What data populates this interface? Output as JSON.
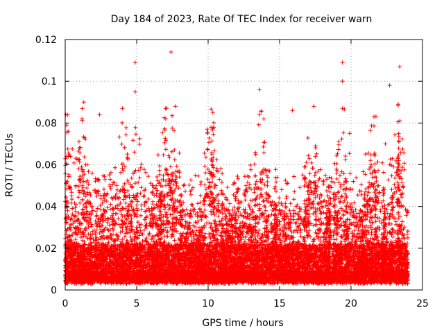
{
  "chart_data": {
    "type": "scatter",
    "title": "Day 184 of 2023, Rate Of TEC Index for receiver warn",
    "xlabel": "GPS time / hours",
    "ylabel": "ROTI / TECUs",
    "xlim": [
      0,
      25
    ],
    "ylim": [
      0,
      0.12
    ],
    "xticks": [
      0,
      5,
      10,
      15,
      20,
      25
    ],
    "yticks": [
      0,
      0.02,
      0.04,
      0.06,
      0.08,
      0.1,
      0.12
    ],
    "xtick_labels": [
      "0",
      "5",
      "10",
      "15",
      "20",
      "25"
    ],
    "ytick_labels": [
      "0",
      "0.02",
      "0.04",
      "0.06",
      "0.08",
      "0.1",
      "0.12"
    ],
    "grid": true,
    "marker": "+",
    "color": "#ff0000",
    "outliers": [
      {
        "x": 7.4,
        "y": 0.114
      },
      {
        "x": 4.9,
        "y": 0.109
      },
      {
        "x": 19.4,
        "y": 0.109
      },
      {
        "x": 23.4,
        "y": 0.107
      },
      {
        "x": 19.4,
        "y": 0.1
      },
      {
        "x": 22.7,
        "y": 0.098
      },
      {
        "x": 13.6,
        "y": 0.096
      },
      {
        "x": 4.9,
        "y": 0.095
      },
      {
        "x": 1.3,
        "y": 0.09
      },
      {
        "x": 23.3,
        "y": 0.089
      },
      {
        "x": 7.7,
        "y": 0.088
      },
      {
        "x": 17.4,
        "y": 0.088
      },
      {
        "x": 4.0,
        "y": 0.087
      },
      {
        "x": 19.4,
        "y": 0.087
      },
      {
        "x": 15.9,
        "y": 0.086
      },
      {
        "x": 2.4,
        "y": 0.084
      },
      {
        "x": 13.6,
        "y": 0.084
      },
      {
        "x": 13.9,
        "y": 0.082
      },
      {
        "x": 21.6,
        "y": 0.083
      },
      {
        "x": 0.1,
        "y": 0.079
      },
      {
        "x": 10.2,
        "y": 0.078
      },
      {
        "x": 10.4,
        "y": 0.078
      },
      {
        "x": 22.4,
        "y": 0.07
      },
      {
        "x": 19.9,
        "y": 0.075
      }
    ]
  }
}
